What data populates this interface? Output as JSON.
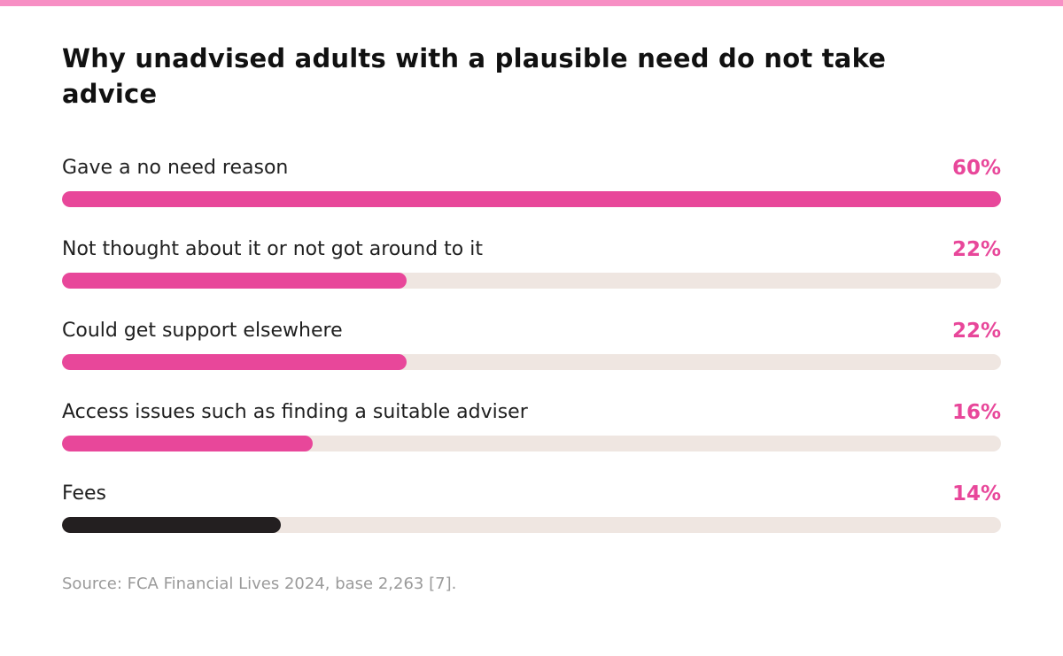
{
  "colors": {
    "accent": "#e8479a",
    "dark_bar": "#231f20",
    "track": "#efe6e1",
    "top_rule": "#f78fc4"
  },
  "source_note": "Source: FCA Financial Lives 2024, base 2,263 [7].",
  "chart_data": {
    "type": "bar",
    "orientation": "horizontal",
    "title": "Why unadvised adults with a plausible need do not take advice",
    "xlim": [
      0,
      60
    ],
    "grid": false,
    "categories": [
      "Gave a no need reason",
      "Not thought about it or not got around to it",
      "Could get support elsewhere",
      "Access issues such as finding a suitable adviser",
      "Fees"
    ],
    "values": [
      60,
      22,
      22,
      16,
      14
    ],
    "value_labels": [
      "60%",
      "22%",
      "22%",
      "16%",
      "14%"
    ],
    "bar_colors": [
      "#e8479a",
      "#e8479a",
      "#e8479a",
      "#e8479a",
      "#231f20"
    ]
  }
}
